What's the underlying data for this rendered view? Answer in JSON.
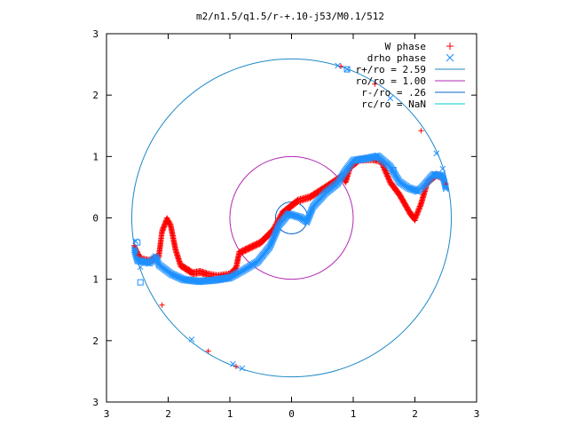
{
  "chart_data": {
    "type": "scatter",
    "title": "m2/n1.5/q1.5/r-+.10-j53/M0.1/512",
    "xlim": [
      -3,
      3
    ],
    "ylim": [
      -3,
      3
    ],
    "x_ticks": [
      -3,
      -2,
      -1,
      0,
      1,
      2,
      3
    ],
    "y_ticks": [
      -3,
      -2,
      -1,
      0,
      1,
      2,
      3
    ],
    "x_tick_labels": [
      "3",
      "2",
      "1",
      "0",
      "1",
      "2",
      "3"
    ],
    "y_tick_labels": [
      "3",
      "2",
      "1",
      "0",
      "1",
      "2",
      "3"
    ],
    "legend_position": "top-right",
    "grid": false,
    "series": [
      {
        "name": "W phase",
        "kind": "points",
        "marker": "plus",
        "color": "#ff0000",
        "path": [
          [
            -2.55,
            -0.45
          ],
          [
            -2.45,
            -0.65
          ],
          [
            -2.3,
            -0.68
          ],
          [
            -2.15,
            -0.6
          ],
          [
            -2.1,
            -0.2
          ],
          [
            -2.02,
            0.0
          ],
          [
            -1.96,
            -0.1
          ],
          [
            -1.88,
            -0.5
          ],
          [
            -1.8,
            -0.75
          ],
          [
            -1.6,
            -0.88
          ],
          [
            -1.48,
            -0.86
          ],
          [
            -1.36,
            -0.9
          ],
          [
            -1.2,
            -0.93
          ],
          [
            -1.0,
            -0.9
          ],
          [
            -0.9,
            -0.8
          ],
          [
            -0.85,
            -0.55
          ],
          [
            -0.75,
            -0.5
          ],
          [
            -0.5,
            -0.38
          ],
          [
            -0.3,
            -0.18
          ],
          [
            -0.15,
            0.1
          ],
          [
            0.1,
            0.3
          ],
          [
            0.3,
            0.36
          ],
          [
            0.55,
            0.52
          ],
          [
            0.7,
            0.62
          ],
          [
            0.82,
            0.7
          ],
          [
            0.88,
            0.62
          ],
          [
            0.95,
            0.85
          ],
          [
            1.1,
            0.97
          ],
          [
            1.3,
            0.98
          ],
          [
            1.45,
            0.95
          ],
          [
            1.6,
            0.6
          ],
          [
            1.75,
            0.4
          ],
          [
            1.92,
            0.1
          ],
          [
            2.0,
            0.0
          ],
          [
            2.1,
            0.25
          ],
          [
            2.2,
            0.6
          ],
          [
            2.35,
            0.72
          ],
          [
            2.45,
            0.68
          ]
        ],
        "extra": [
          [
            -2.1,
            -1.42
          ],
          [
            -1.35,
            -2.17
          ],
          [
            -0.9,
            -2.42
          ],
          [
            0.8,
            2.47
          ],
          [
            1.35,
            2.18
          ],
          [
            2.1,
            1.42
          ],
          [
            -2.48,
            -0.6
          ],
          [
            2.5,
            0.55
          ]
        ]
      },
      {
        "name": "drho phase",
        "kind": "points",
        "marker": "cross",
        "color": "#1e90ff",
        "path": [
          [
            -2.55,
            -0.5
          ],
          [
            -2.5,
            -0.68
          ],
          [
            -2.3,
            -0.72
          ],
          [
            -2.2,
            -0.62
          ],
          [
            -2.15,
            -0.75
          ],
          [
            -1.95,
            -0.9
          ],
          [
            -1.75,
            -0.99
          ],
          [
            -1.5,
            -1.02
          ],
          [
            -1.25,
            -1.0
          ],
          [
            -1.0,
            -0.96
          ],
          [
            -0.8,
            -0.85
          ],
          [
            -0.55,
            -0.7
          ],
          [
            -0.35,
            -0.45
          ],
          [
            -0.2,
            -0.1
          ],
          [
            -0.05,
            0.08
          ],
          [
            0.15,
            0.02
          ],
          [
            0.25,
            -0.05
          ],
          [
            0.35,
            0.2
          ],
          [
            0.55,
            0.42
          ],
          [
            0.75,
            0.58
          ],
          [
            0.85,
            0.75
          ],
          [
            1.0,
            0.95
          ],
          [
            1.2,
            0.98
          ],
          [
            1.4,
            1.02
          ],
          [
            1.6,
            0.85
          ],
          [
            1.75,
            0.6
          ],
          [
            1.9,
            0.5
          ],
          [
            2.05,
            0.45
          ],
          [
            2.15,
            0.55
          ],
          [
            2.3,
            0.72
          ],
          [
            2.45,
            0.7
          ],
          [
            2.5,
            0.5
          ]
        ],
        "extra": [
          [
            -2.53,
            -0.38
          ],
          [
            -2.45,
            -0.8
          ],
          [
            -1.62,
            -1.98
          ],
          [
            -0.95,
            -2.38
          ],
          [
            -0.8,
            -2.45
          ],
          [
            0.75,
            2.48
          ],
          [
            0.9,
            2.42
          ],
          [
            1.6,
            1.95
          ],
          [
            2.35,
            1.05
          ],
          [
            2.45,
            0.8
          ],
          [
            2.5,
            0.52
          ]
        ]
      },
      {
        "name": "r+/ro = 2.59",
        "kind": "circle",
        "radius": 2.59,
        "color": "#1e88c8"
      },
      {
        "name": "ro/ro = 1.00",
        "kind": "circle",
        "radius": 1.0,
        "color": "#b428b4"
      },
      {
        "name": "r-/ro = .26",
        "kind": "circle",
        "radius": 0.26,
        "color": "#0a64c8"
      },
      {
        "name": "rc/ro = NaN",
        "kind": "circle",
        "radius": null,
        "color": "#00cccc"
      }
    ],
    "squares": [
      [
        -2.5,
        -0.4
      ],
      [
        -2.45,
        -1.05
      ],
      [
        1.65,
        0.78
      ],
      [
        0.9,
        2.42
      ]
    ]
  }
}
